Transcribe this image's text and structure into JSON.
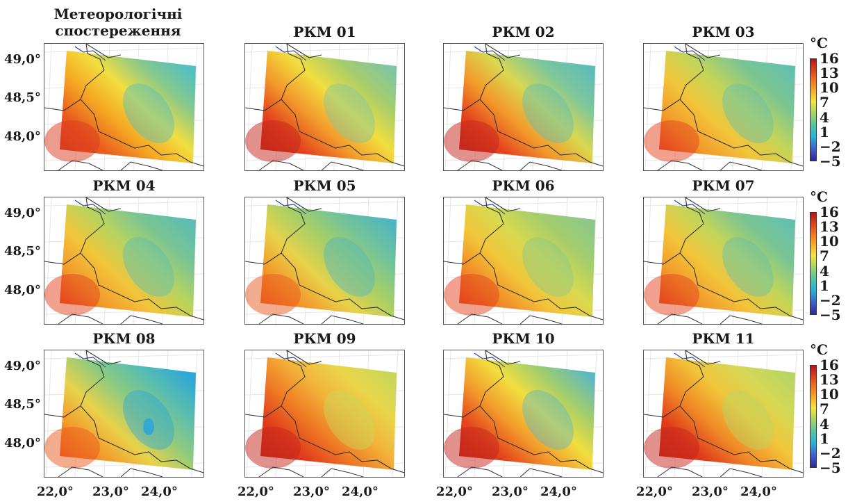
{
  "panels": [
    {
      "title": "Метеорологічні\nспостереження",
      "variant": 0
    },
    {
      "title": "РКМ 01",
      "variant": 1
    },
    {
      "title": "РКМ 02",
      "variant": 2
    },
    {
      "title": "РКМ 03",
      "variant": 3
    },
    {
      "title": "РКМ 04",
      "variant": 4
    },
    {
      "title": "РКМ 05",
      "variant": 5
    },
    {
      "title": "РКМ 06",
      "variant": 6
    },
    {
      "title": "РКМ 07",
      "variant": 3
    },
    {
      "title": "РКМ 08",
      "variant": 7
    },
    {
      "title": "РКМ 09",
      "variant": 8
    },
    {
      "title": "РКМ 10",
      "variant": 9
    },
    {
      "title": "РКМ 11",
      "variant": 10
    }
  ],
  "lat_labels": [
    "49,0°",
    "48,5°",
    "48,0°"
  ],
  "lon_labels": [
    "22,0°",
    "23,0°",
    "24,0°"
  ],
  "colorbar": {
    "unit": "°C",
    "ticks": [
      "16",
      "13",
      "10",
      "7",
      "4",
      "1",
      "−2",
      "−5"
    ],
    "range": [
      -5,
      16
    ]
  },
  "colors": {
    "cold": "#3aa7cf",
    "cool": "#6fc38e",
    "mild": "#f2de3f",
    "warm": "#f29a2b",
    "hot": "#e4431e",
    "hottest": "#c4261b",
    "border_line": "#333333",
    "river_line": "#2a3d9a"
  }
}
